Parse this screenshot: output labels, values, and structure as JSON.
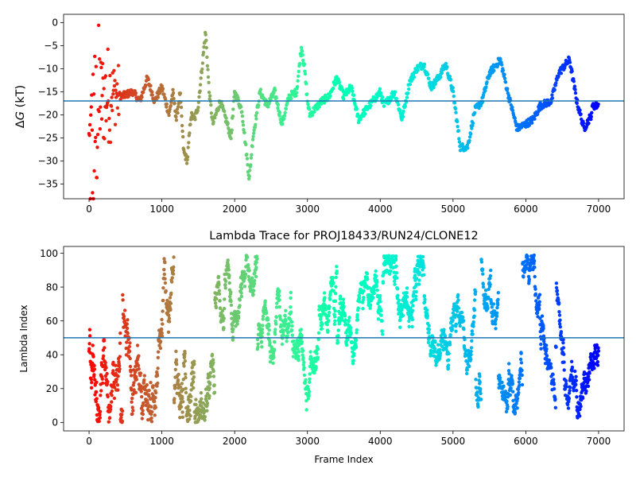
{
  "chart_data": [
    {
      "id": "delta-g-panel",
      "type": "scatter",
      "title": "",
      "xlabel": "",
      "ylabel_prefix": "Δ",
      "ylabel_italic": "G",
      "ylabel_suffix": " (kT)",
      "xlim": [
        -350,
        7350
      ],
      "ylim": [
        -38.2,
        1.8
      ],
      "xticks": [
        0,
        1000,
        2000,
        3000,
        4000,
        5000,
        6000,
        7000
      ],
      "yticks": [
        0,
        -5,
        -10,
        -15,
        -20,
        -25,
        -30,
        -35
      ],
      "hline": -17,
      "hline_color": "#1f77b4",
      "grid": false,
      "colormap": "rainbow",
      "point_count": 7000,
      "keypoints": [
        [
          0,
          -30
        ],
        [
          150,
          -17
        ],
        [
          300,
          -15
        ],
        [
          450,
          -16
        ],
        [
          600,
          -15
        ],
        [
          700,
          -17
        ],
        [
          800,
          -12
        ],
        [
          900,
          -17
        ],
        [
          1000,
          -14
        ],
        [
          1100,
          -20
        ],
        [
          1150,
          -15
        ],
        [
          1200,
          -21
        ],
        [
          1250,
          -15
        ],
        [
          1300,
          -28
        ],
        [
          1350,
          -30
        ],
        [
          1400,
          -20
        ],
        [
          1450,
          -21
        ],
        [
          1500,
          -18
        ],
        [
          1600,
          -2
        ],
        [
          1650,
          -15
        ],
        [
          1700,
          -22
        ],
        [
          1800,
          -17
        ],
        [
          1900,
          -22
        ],
        [
          1950,
          -25
        ],
        [
          2000,
          -15
        ],
        [
          2100,
          -19
        ],
        [
          2200,
          -34
        ],
        [
          2250,
          -25
        ],
        [
          2350,
          -15
        ],
        [
          2450,
          -18
        ],
        [
          2550,
          -15
        ],
        [
          2650,
          -22
        ],
        [
          2750,
          -16
        ],
        [
          2850,
          -15
        ],
        [
          2920,
          -5
        ],
        [
          2960,
          -10
        ],
        [
          3000,
          -17
        ],
        [
          3030,
          -20
        ],
        [
          3200,
          -17
        ],
        [
          3300,
          -16
        ],
        [
          3400,
          -12
        ],
        [
          3500,
          -16
        ],
        [
          3600,
          -14
        ],
        [
          3700,
          -21
        ],
        [
          3800,
          -19
        ],
        [
          3900,
          -17
        ],
        [
          4000,
          -15
        ],
        [
          4050,
          -18
        ],
        [
          4200,
          -15
        ],
        [
          4300,
          -21
        ],
        [
          4400,
          -13
        ],
        [
          4500,
          -10
        ],
        [
          4600,
          -9
        ],
        [
          4700,
          -14
        ],
        [
          4800,
          -12
        ],
        [
          4900,
          -9
        ],
        [
          5000,
          -15
        ],
        [
          5100,
          -27
        ],
        [
          5200,
          -27
        ],
        [
          5300,
          -19
        ],
        [
          5400,
          -17
        ],
        [
          5500,
          -11
        ],
        [
          5650,
          -8
        ],
        [
          5750,
          -15
        ],
        [
          5880,
          -23
        ],
        [
          6000,
          -22
        ],
        [
          6100,
          -21
        ],
        [
          6200,
          -18
        ],
        [
          6350,
          -17
        ],
        [
          6450,
          -11
        ],
        [
          6600,
          -8
        ],
        [
          6700,
          -17
        ],
        [
          6800,
          -23
        ],
        [
          6900,
          -20
        ],
        [
          6920,
          -18
        ],
        [
          7000,
          -18
        ]
      ]
    },
    {
      "id": "lambda-panel",
      "type": "scatter",
      "title": "Lambda Trace for PROJ18433/RUN24/CLONE12",
      "xlabel": "Frame Index",
      "ylabel": "Lambda Index",
      "xlim": [
        -350,
        7350
      ],
      "ylim": [
        -5,
        104
      ],
      "xticks": [
        0,
        1000,
        2000,
        3000,
        4000,
        5000,
        6000,
        7000
      ],
      "yticks": [
        0,
        20,
        40,
        60,
        80,
        100
      ],
      "hline": 50,
      "hline_color": "#1f77b4",
      "grid": false,
      "colormap": "rainbow",
      "point_count": 7000,
      "value_range": [
        0,
        99
      ]
    }
  ]
}
